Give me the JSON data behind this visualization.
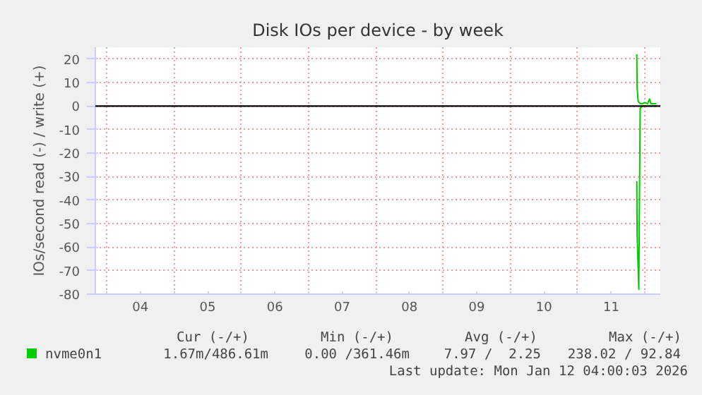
{
  "chart_data": {
    "type": "line",
    "title": "Disk IOs per device - by week",
    "ylabel": "IOs/second read (-) / write (+)",
    "xlim": [
      3.83,
      12.23
    ],
    "ylim": [
      -80,
      25
    ],
    "xticks": [
      {
        "value": 4,
        "label": null
      },
      {
        "value": 4.5,
        "label": "04"
      },
      {
        "value": 5,
        "label": null
      },
      {
        "value": 5.5,
        "label": "05"
      },
      {
        "value": 6,
        "label": null
      },
      {
        "value": 6.5,
        "label": "06"
      },
      {
        "value": 7,
        "label": null
      },
      {
        "value": 7.5,
        "label": "07"
      },
      {
        "value": 8,
        "label": null
      },
      {
        "value": 8.5,
        "label": "08"
      },
      {
        "value": 9,
        "label": null
      },
      {
        "value": 9.5,
        "label": "09"
      },
      {
        "value": 10,
        "label": null
      },
      {
        "value": 10.5,
        "label": "10"
      },
      {
        "value": 11,
        "label": null
      },
      {
        "value": 11.5,
        "label": "11"
      },
      {
        "value": 12,
        "label": null
      }
    ],
    "yticks": [
      -80,
      -70,
      -60,
      -50,
      -40,
      -30,
      -20,
      -10,
      0,
      10,
      20
    ],
    "grid": true,
    "legend": "bottom",
    "ref_lines": [
      {
        "axis": "y",
        "value": 0,
        "label": null,
        "color": "#000000"
      }
    ],
    "series": [
      {
        "name": "nvme0n1",
        "color": "#00cc00",
        "x": [
          11.88,
          11.885,
          11.9,
          11.93,
          11.96,
          12.0,
          12.04,
          12.07,
          12.09,
          12.12,
          12.17
        ],
        "values": [
          22,
          8,
          2,
          1,
          1,
          1.5,
          1,
          3,
          1,
          1,
          1
        ]
      },
      {
        "color": "#00cc00",
        "x": [
          11.88,
          11.885,
          11.91,
          11.93,
          11.96,
          12.0,
          12.05,
          12.1,
          12.17
        ],
        "values": [
          -32,
          -55,
          -78,
          -1,
          0,
          0,
          0,
          0,
          0
        ]
      }
    ],
    "annotations": [
      "Cur (-/+)",
      "Min (-/+)",
      "Avg (-/+)",
      "Max (-/+)",
      "1.67m/486.61m",
      "0.00 /361.46m",
      "7.97 /  2.25",
      "238.02 / 92.84",
      "Last update: Mon Jan 12 04:00:03 2026"
    ]
  }
}
